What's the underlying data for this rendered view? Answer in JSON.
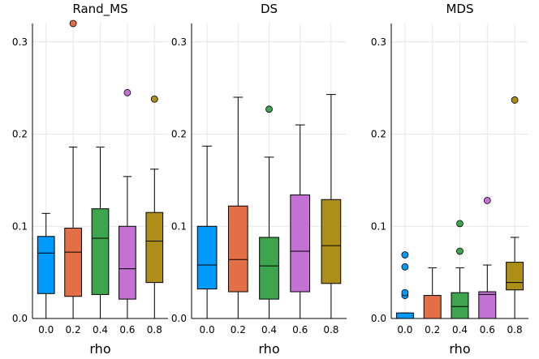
{
  "chart_data": {
    "type": "box",
    "xlabel": "rho",
    "categories": [
      "0.0",
      "0.2",
      "0.4",
      "0.6",
      "0.8"
    ],
    "colors": [
      "#009AFA",
      "#E36F47",
      "#3EA44E",
      "#C371D2",
      "#AC8E18"
    ],
    "ylim": [
      0,
      0.32
    ],
    "yticks": [
      "0.0",
      "0.1",
      "0.2",
      "0.3"
    ],
    "ytick_values": [
      0,
      0.1,
      0.2,
      0.3
    ],
    "panels": [
      {
        "title": "Rand_MS",
        "boxes": [
          {
            "category": "0.0",
            "whisker_low": 0.0,
            "q1": 0.027,
            "median": 0.071,
            "q3": 0.089,
            "whisker_high": 0.114,
            "outliers": []
          },
          {
            "category": "0.2",
            "whisker_low": 0.0,
            "q1": 0.024,
            "median": 0.072,
            "q3": 0.098,
            "whisker_high": 0.186,
            "outliers": [
              0.32
            ]
          },
          {
            "category": "0.4",
            "whisker_low": 0.0,
            "q1": 0.026,
            "median": 0.087,
            "q3": 0.119,
            "whisker_high": 0.186,
            "outliers": []
          },
          {
            "category": "0.6",
            "whisker_low": 0.0,
            "q1": 0.021,
            "median": 0.054,
            "q3": 0.1,
            "whisker_high": 0.154,
            "outliers": [
              0.245
            ]
          },
          {
            "category": "0.8",
            "whisker_low": 0.0,
            "q1": 0.039,
            "median": 0.084,
            "q3": 0.115,
            "whisker_high": 0.162,
            "outliers": [
              0.238
            ]
          }
        ]
      },
      {
        "title": "DS",
        "boxes": [
          {
            "category": "0.0",
            "whisker_low": 0.0,
            "q1": 0.032,
            "median": 0.058,
            "q3": 0.1,
            "whisker_high": 0.187,
            "outliers": []
          },
          {
            "category": "0.2",
            "whisker_low": 0.0,
            "q1": 0.029,
            "median": 0.064,
            "q3": 0.122,
            "whisker_high": 0.24,
            "outliers": []
          },
          {
            "category": "0.4",
            "whisker_low": 0.0,
            "q1": 0.021,
            "median": 0.057,
            "q3": 0.088,
            "whisker_high": 0.175,
            "outliers": [
              0.227
            ]
          },
          {
            "category": "0.6",
            "whisker_low": 0.0,
            "q1": 0.029,
            "median": 0.073,
            "q3": 0.134,
            "whisker_high": 0.21,
            "outliers": []
          },
          {
            "category": "0.8",
            "whisker_low": 0.0,
            "q1": 0.038,
            "median": 0.079,
            "q3": 0.129,
            "whisker_high": 0.243,
            "outliers": []
          }
        ]
      },
      {
        "title": "MDS",
        "boxes": [
          {
            "category": "0.0",
            "whisker_low": 0.0,
            "q1": 0.0,
            "median": 0.0,
            "q3": 0.006,
            "whisker_high": 0.006,
            "outliers": [
              0.025,
              0.028,
              0.056,
              0.069
            ]
          },
          {
            "category": "0.2",
            "whisker_low": 0.0,
            "q1": 0.0,
            "median": 0.0,
            "q3": 0.025,
            "whisker_high": 0.055,
            "outliers": []
          },
          {
            "category": "0.4",
            "whisker_low": 0.0,
            "q1": 0.0,
            "median": 0.013,
            "q3": 0.028,
            "whisker_high": 0.055,
            "outliers": [
              0.073,
              0.103
            ]
          },
          {
            "category": "0.6",
            "whisker_low": 0.0,
            "q1": 0.0,
            "median": 0.026,
            "q3": 0.029,
            "whisker_high": 0.058,
            "outliers": [
              0.128
            ]
          },
          {
            "category": "0.8",
            "whisker_low": 0.0,
            "q1": 0.031,
            "median": 0.039,
            "q3": 0.061,
            "whisker_high": 0.088,
            "outliers": [
              0.237
            ]
          }
        ]
      }
    ]
  }
}
